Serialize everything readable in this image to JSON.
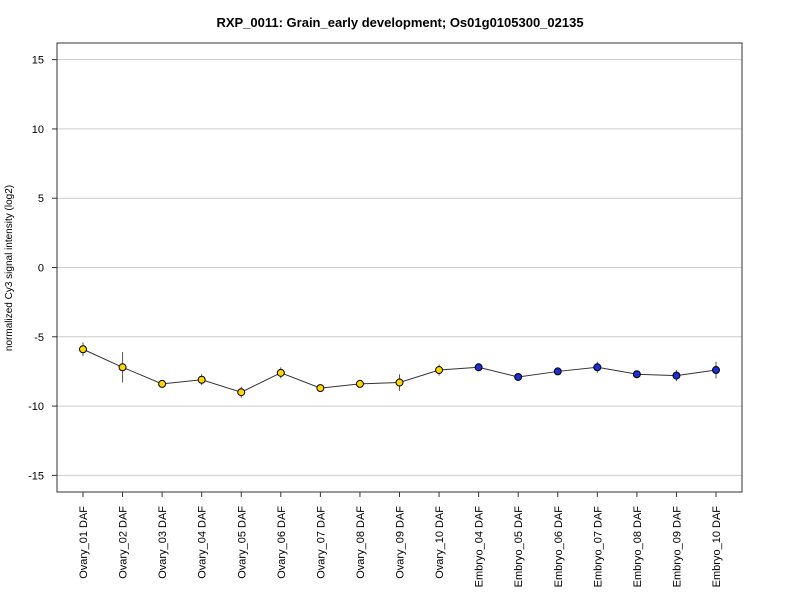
{
  "chart_data": {
    "type": "line",
    "title": "RXP_0011: Grain_early development; Os01g0105300_02135",
    "ylabel": "normalized Cy3 signal intensity (log2)",
    "xlabel": "",
    "ylim": [
      -16.2,
      16.2
    ],
    "yticks": [
      -15,
      -10,
      -5,
      0,
      5,
      10,
      15
    ],
    "ytick_labels": [
      "-15",
      "-10",
      "-5",
      "0",
      "5",
      "10",
      "15"
    ],
    "grid": true,
    "categories": [
      "Ovary_01 DAF",
      "Ovary_02 DAF",
      "Ovary_03 DAF",
      "Ovary_04 DAF",
      "Ovary_05 DAF",
      "Ovary_06 DAF",
      "Ovary_07 DAF",
      "Ovary_08 DAF",
      "Ovary_09 DAF",
      "Ovary_10 DAF",
      "Embryo_04 DAF",
      "Embryo_05 DAF",
      "Embryo_06 DAF",
      "Embryo_07 DAF",
      "Embryo_08 DAF",
      "Embryo_09 DAF",
      "Embryo_10 DAF"
    ],
    "values": [
      -5.9,
      -7.2,
      -8.4,
      -8.1,
      -9.0,
      -7.6,
      -8.7,
      -8.4,
      -8.3,
      -7.4,
      -7.2,
      -7.9,
      -7.5,
      -7.2,
      -7.7,
      -7.8,
      -7.4
    ],
    "errors": [
      0.5,
      1.1,
      0.1,
      0.4,
      0.4,
      0.4,
      0.2,
      0.2,
      0.6,
      0.4,
      0.1,
      0.1,
      0.2,
      0.4,
      0.1,
      0.4,
      0.6
    ],
    "point_colors": [
      "#ffd700",
      "#ffd700",
      "#ffd700",
      "#ffd700",
      "#ffd700",
      "#ffd700",
      "#ffd700",
      "#ffd700",
      "#ffd700",
      "#ffd700",
      "#1a2fd6",
      "#1a2fd6",
      "#1a2fd6",
      "#1a2fd6",
      "#1a2fd6",
      "#1a2fd6",
      "#1a2fd6"
    ],
    "line_color": "#333333",
    "grid_color": "#cccccc"
  }
}
